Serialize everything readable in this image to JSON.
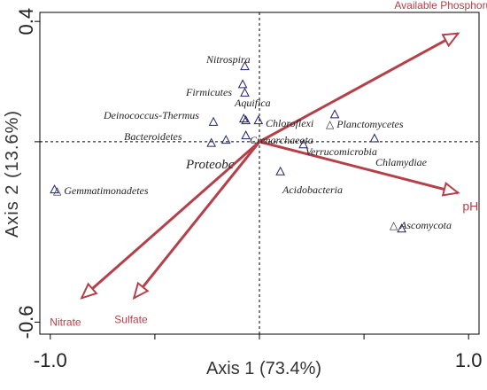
{
  "chart_data": {
    "type": "scatter",
    "xlabel": "Axis 1 (73.4%)",
    "ylabel": "Axis 2 (13.6%)",
    "xlim": [
      -1.05,
      1.05
    ],
    "ylim": [
      -0.64,
      0.43
    ],
    "x_ticks": [
      -1.0,
      -0.5,
      0,
      0.5,
      1.0
    ],
    "x_tick_labels": [
      "-1.0",
      "",
      "",
      "",
      "1.0"
    ],
    "y_ticks": [
      0.4,
      0,
      -0.6
    ],
    "y_tick_labels": [
      "0.4",
      "",
      "-0.6"
    ],
    "zero_lines": "dashed",
    "grid": false,
    "colors": {
      "vector": "#b5404a",
      "marker": "#20206e",
      "axis": "#000000"
    },
    "points": [
      {
        "label": "Nitrospira",
        "x": -0.07,
        "y": 0.25
      },
      {
        "label": "Firmicutes",
        "x": -0.08,
        "y": 0.19
      },
      {
        "label": "Aquifica",
        "x": -0.07,
        "y": 0.162
      },
      {
        "label": "Deinococcus-Thermus",
        "x": -0.22,
        "y": 0.065
      },
      {
        "label": "",
        "x": -0.075,
        "y": 0.076
      },
      {
        "label": "",
        "x": -0.065,
        "y": 0.07
      },
      {
        "label": "",
        "x": -0.005,
        "y": 0.07
      },
      {
        "label": "Bacteroidetes",
        "x": -0.16,
        "y": 0.005
      },
      {
        "label": "Chloroflexi",
        "x": 0.36,
        "y": 0.09
      },
      {
        "label": "Planctomycetes",
        "x": 0.36,
        "y": 0.09
      },
      {
        "label": "Crenarchaeota",
        "x": -0.065,
        "y": 0.02
      },
      {
        "label": "Verrucomicrobia",
        "x": 0.21,
        "y": -0.01
      },
      {
        "label": "",
        "x": 0.55,
        "y": 0.01
      },
      {
        "label": "Chlamydiae",
        "x": 0.55,
        "y": 0.01
      },
      {
        "label": "Proteobc",
        "x": -0.23,
        "y": -0.005
      },
      {
        "label": "Acidobacteria",
        "x": 0.1,
        "y": -0.1
      },
      {
        "label": "Gemmatimonadetes",
        "x": -0.98,
        "y": -0.16
      },
      {
        "label": "Ascomycota",
        "x": 0.68,
        "y": -0.29
      }
    ],
    "vectors": [
      {
        "label": "Available Phosphorus",
        "x": 0.95,
        "y": 0.36
      },
      {
        "label": "pH",
        "x": 0.95,
        "y": -0.17
      },
      {
        "label": "Nitrate",
        "x": -0.85,
        "y": -0.52
      },
      {
        "label": "Sulfate",
        "x": -0.6,
        "y": -0.52
      }
    ]
  }
}
